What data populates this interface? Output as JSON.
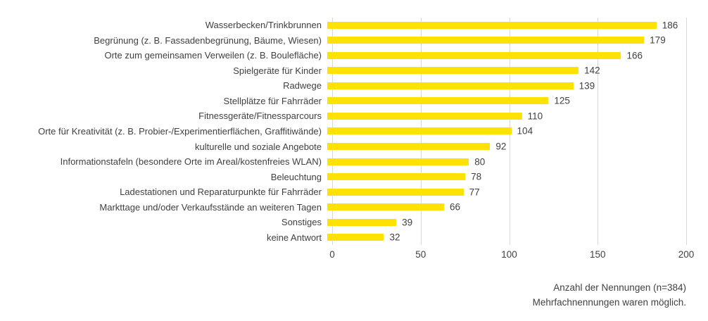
{
  "chart_data": {
    "type": "bar",
    "orientation": "horizontal",
    "title": "",
    "xlabel": "",
    "ylabel": "",
    "xlim": [
      0,
      200
    ],
    "xticks": [
      0,
      50,
      100,
      150,
      200
    ],
    "grid": "vertical",
    "legend": "none",
    "categories": [
      "Wasserbecken/Trinkbrunnen",
      "Begrünung (z. B. Fassadenbegrünung, Bäume, Wiesen)",
      "Orte zum gemeinsamen Verweilen (z. B. Boulefläche)",
      "Spielgeräte für Kinder",
      "Radwege",
      "Stellplätze für Fahrräder",
      "Fitnessgeräte/Fitnessparcours",
      "Orte für Kreativität (z. B. Probier-/Experimentierflächen, Graffitiwände)",
      "kulturelle und soziale Angebote",
      "Informationstafeln (besondere Orte im Areal/kostenfreies WLAN)",
      "Beleuchtung",
      "Ladestationen und Reparaturpunkte für Fahrräder",
      "Markttage und/oder Verkaufsstände an weiteren Tagen",
      "Sonstiges",
      "keine Antwort"
    ],
    "values": [
      186,
      179,
      166,
      142,
      139,
      125,
      110,
      104,
      92,
      80,
      78,
      77,
      66,
      39,
      32
    ],
    "note_line1": "Anzahl der Nennungen (n=384)",
    "note_line2": "Mehrfachnennungen waren möglich."
  },
  "colors": {
    "bar": "#ffe205",
    "gridline": "#d9d9d9",
    "text": "#404040",
    "background": "#ffffff"
  }
}
